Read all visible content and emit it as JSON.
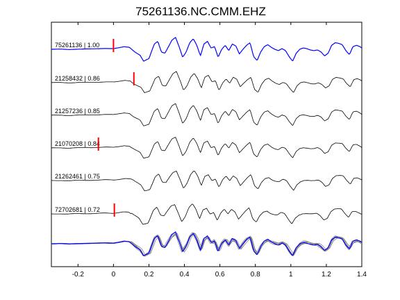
{
  "chart_data": {
    "type": "line",
    "title": "75261136.NC.CMM.EHZ",
    "xlabel": "",
    "ylabel": "",
    "xlim": [
      -0.35,
      1.4
    ],
    "xticks": [
      -0.2,
      0,
      0.2,
      0.4,
      0.6,
      0.8,
      1,
      1.2,
      1.4
    ],
    "xtick_labels": [
      "-0.2",
      "0",
      "0.2",
      "0.4",
      "0.6",
      "0.8",
      "1",
      "1.2",
      "1.4"
    ],
    "grid": false,
    "legend": "none",
    "colors": {
      "reference": "#0000ff",
      "trace": "#000000",
      "overlay": "#808080",
      "pick": "#ff0000",
      "axes": "#000000"
    },
    "traces": [
      {
        "label": "75261136 | 1.00",
        "id": "75261136",
        "cc": 1.0,
        "pick_time": 0.0,
        "is_reference": true,
        "shift": 0.0,
        "amp": 1.0
      },
      {
        "label": "21258432 | 0.86",
        "id": "21258432",
        "cc": 0.86,
        "pick_time": 0.115,
        "is_reference": false,
        "shift": 0.005,
        "amp": 0.9
      },
      {
        "label": "21257236 | 0.85",
        "id": "21257236",
        "cc": 0.85,
        "pick_time": null,
        "is_reference": false,
        "shift": 0.0,
        "amp": 0.95
      },
      {
        "label": "21070208 | 0.84",
        "id": "21070208",
        "cc": 0.84,
        "pick_time": -0.085,
        "is_reference": false,
        "shift": 0.0,
        "amp": 0.9
      },
      {
        "label": "21262461 | 0.75",
        "id": "21262461",
        "cc": 0.75,
        "pick_time": null,
        "is_reference": false,
        "shift": 0.005,
        "amp": 0.85
      },
      {
        "label": "72702681 | 0.72",
        "id": "72702681",
        "cc": 0.72,
        "pick_time": 0.005,
        "is_reference": false,
        "shift": -0.005,
        "amp": 0.85
      }
    ],
    "reference_waveform": {
      "t": [
        -0.35,
        -0.3,
        -0.25,
        -0.2,
        -0.15,
        -0.1,
        -0.05,
        0.0,
        0.03,
        0.06,
        0.09,
        0.12,
        0.15,
        0.17,
        0.2,
        0.23,
        0.25,
        0.27,
        0.29,
        0.31,
        0.33,
        0.35,
        0.37,
        0.39,
        0.41,
        0.43,
        0.45,
        0.47,
        0.49,
        0.51,
        0.53,
        0.55,
        0.57,
        0.59,
        0.61,
        0.63,
        0.65,
        0.67,
        0.69,
        0.71,
        0.73,
        0.75,
        0.77,
        0.79,
        0.81,
        0.83,
        0.85,
        0.87,
        0.89,
        0.91,
        0.93,
        0.95,
        0.97,
        0.99,
        1.01,
        1.03,
        1.05,
        1.07,
        1.09,
        1.11,
        1.13,
        1.15,
        1.17,
        1.19,
        1.21,
        1.23,
        1.25,
        1.27,
        1.29,
        1.31,
        1.33,
        1.35,
        1.37,
        1.39,
        1.4
      ],
      "y": [
        0.0,
        0.02,
        -0.02,
        0.01,
        0.03,
        0.04,
        0.06,
        0.05,
        0.12,
        0.2,
        0.15,
        -0.2,
        -0.45,
        -0.9,
        -0.7,
        0.4,
        0.6,
        -0.2,
        -0.3,
        0.2,
        0.7,
        0.9,
        0.2,
        -0.6,
        -0.2,
        0.5,
        0.8,
        0.3,
        -0.5,
        0.4,
        0.6,
        0.1,
        0.2,
        -0.6,
        0.0,
        0.3,
        -0.1,
        0.4,
        0.25,
        -0.35,
        0.0,
        0.3,
        0.5,
        -0.55,
        -0.85,
        -0.2,
        0.2,
        0.35,
        0.15,
        0.0,
        -0.1,
        0.05,
        -0.1,
        -0.55,
        -0.9,
        -0.3,
        0.0,
        0.1,
        0.05,
        -0.05,
        -0.1,
        -0.05,
        -0.2,
        -0.5,
        -0.3,
        0.3,
        0.5,
        0.45,
        0.35,
        -0.1,
        -0.4,
        0.2,
        0.3,
        0.2,
        0.1
      ]
    }
  }
}
